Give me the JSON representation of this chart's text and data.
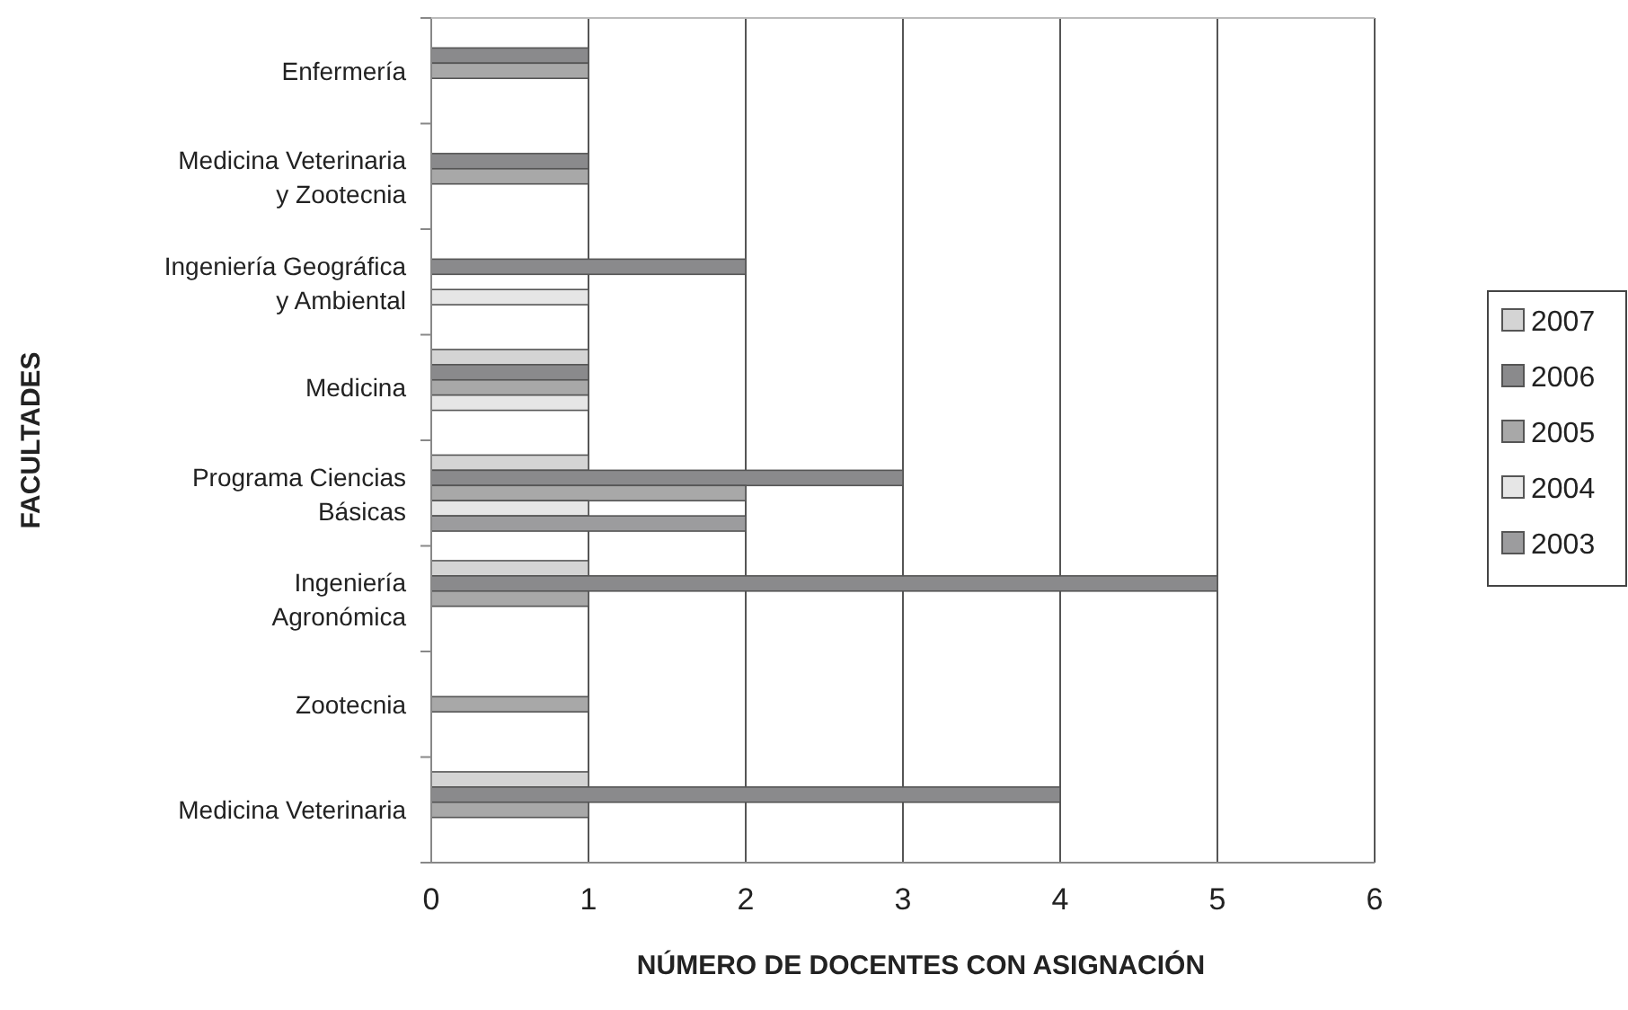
{
  "chart_data": {
    "type": "bar",
    "orientation": "horizontal",
    "xlabel": "NÚMERO DE DOCENTES CON ASIGNACIÓN",
    "ylabel": "FACULTADES",
    "categories": [
      "Enfermería",
      "Medicina Veterinaria\ny Zootecnia",
      "Ingeniería Geográfica\ny Ambiental",
      "Medicina",
      "Programa Ciencias\nBásicas",
      "Ingeniería\nAgronómica",
      "Zootecnia",
      "Medicina Veterinaria"
    ],
    "series": [
      {
        "name": "2007",
        "color": "#d4d4d4",
        "values": [
          null,
          null,
          null,
          1,
          1,
          1,
          null,
          1
        ]
      },
      {
        "name": "2006",
        "color": "#8a8a8c",
        "values": [
          1,
          1,
          2,
          1,
          3,
          5,
          null,
          4
        ]
      },
      {
        "name": "2005",
        "color": "#a8a8a8",
        "values": [
          1,
          1,
          null,
          1,
          2,
          1,
          1,
          1
        ]
      },
      {
        "name": "2004",
        "color": "#e6e6e6",
        "values": [
          null,
          null,
          1,
          1,
          1,
          null,
          null,
          null
        ]
      },
      {
        "name": "2003",
        "color": "#9c9c9e",
        "values": [
          null,
          null,
          null,
          null,
          2,
          null,
          null,
          null
        ]
      }
    ],
    "xlim": [
      0,
      6
    ],
    "xticks": [
      0,
      1,
      2,
      3,
      4,
      5,
      6
    ],
    "grid": "x",
    "legend": "right"
  }
}
